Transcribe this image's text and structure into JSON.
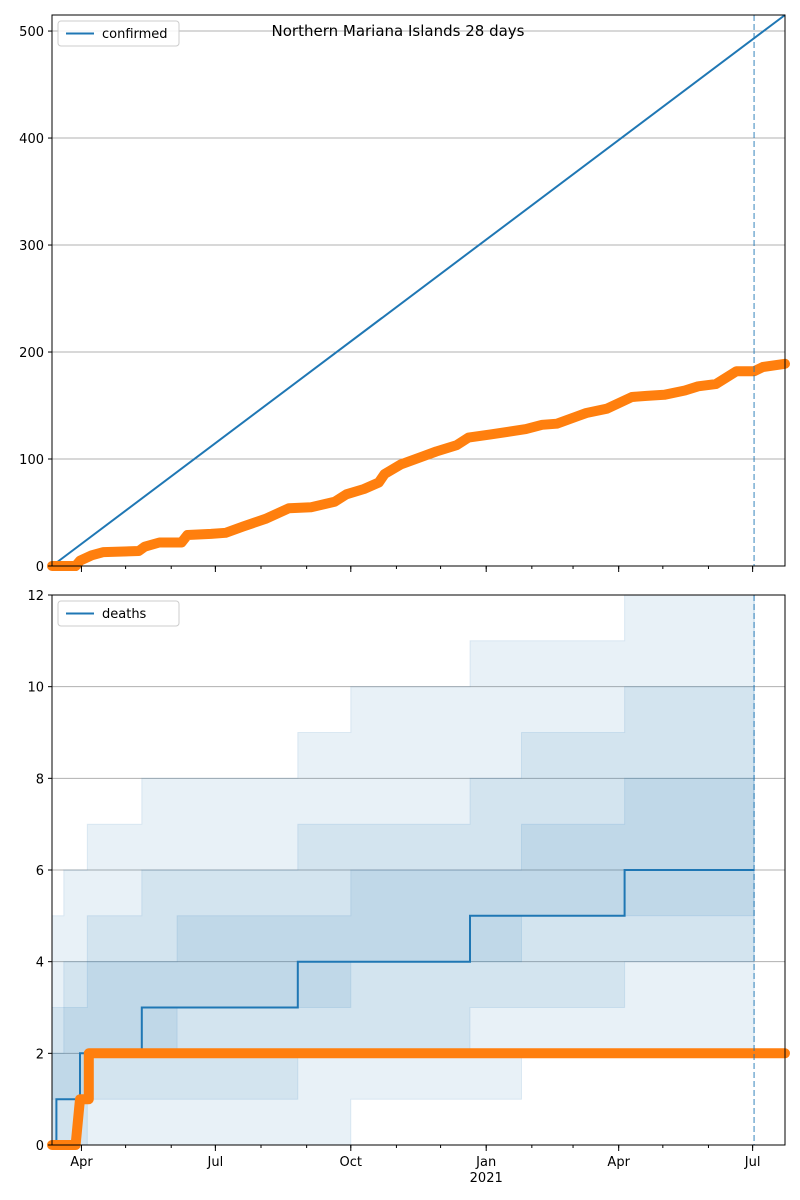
{
  "colors": {
    "line": "#1f77b4",
    "obs": "#ff7f0e",
    "band": "#1f77b4",
    "grid": "#b0b0b0",
    "vline": "#1f77b4"
  },
  "chart_data": [
    {
      "type": "line",
      "title": "Northern Mariana Islands 28 days",
      "legend": "top-left",
      "grid": "horizontal",
      "ylim": [
        0,
        515
      ],
      "yticks": [
        "0",
        "100",
        "200",
        "300",
        "400",
        "500"
      ],
      "xlim": [
        "2020-03-12",
        "2021-07-23"
      ],
      "vline": "2021-07-02",
      "series": [
        {
          "name": "confirmed",
          "kind": "line",
          "x": [
            "2020-03-12",
            "2021-07-23"
          ],
          "y": [
            0,
            515
          ]
        },
        {
          "name": "",
          "kind": "observed",
          "x": [
            "2020-03-12",
            "2020-03-28",
            "2020-03-31",
            "2020-04-08",
            "2020-04-16",
            "2020-05-10",
            "2020-05-14",
            "2020-05-24",
            "2020-06-08",
            "2020-06-12",
            "2020-06-28",
            "2020-07-08",
            "2020-07-20",
            "2020-08-04",
            "2020-08-20",
            "2020-09-04",
            "2020-09-20",
            "2020-09-28",
            "2020-10-10",
            "2020-10-20",
            "2020-10-24",
            "2020-11-04",
            "2020-11-20",
            "2020-11-28",
            "2020-12-12",
            "2020-12-20",
            "2021-01-04",
            "2021-01-28",
            "2021-02-08",
            "2021-02-18",
            "2021-03-04",
            "2021-03-10",
            "2021-03-24",
            "2021-04-10",
            "2021-04-20",
            "2021-05-02",
            "2021-05-16",
            "2021-05-25",
            "2021-06-06",
            "2021-06-20",
            "2021-07-02",
            "2021-07-08",
            "2021-07-23"
          ],
          "y": [
            0,
            0,
            5,
            10,
            13,
            14,
            18,
            22,
            22,
            29,
            30,
            31,
            37,
            44,
            54,
            55,
            60,
            67,
            72,
            78,
            86,
            95,
            103,
            107,
            113,
            120,
            123,
            128,
            132,
            133,
            140,
            143,
            147,
            158,
            159,
            160,
            164,
            168,
            170,
            182,
            182,
            186,
            189
          ]
        }
      ]
    },
    {
      "type": "line",
      "title": "",
      "legend": "top-left",
      "grid": "horizontal",
      "ylim": [
        0,
        12
      ],
      "yticks": [
        "0",
        "2",
        "4",
        "6",
        "8",
        "10",
        "12"
      ],
      "xlim": [
        "2020-03-12",
        "2021-07-23"
      ],
      "xticks": [
        {
          "date": "2020-04-01",
          "label": "Apr"
        },
        {
          "date": "2020-07-01",
          "label": "Jul"
        },
        {
          "date": "2020-10-01",
          "label": "Oct"
        },
        {
          "date": "2021-01-01",
          "label": "Jan"
        },
        {
          "date": "2021-04-01",
          "label": "Apr"
        },
        {
          "date": "2021-07-01",
          "label": "Jul"
        }
      ],
      "xyear": "2021",
      "vline": "2021-07-02",
      "series": [
        {
          "name": "deaths",
          "kind": "step",
          "x": [
            "2020-03-12",
            "2020-03-15",
            "2020-03-31",
            "2020-05-12",
            "2020-08-26",
            "2020-12-21",
            "2021-04-05",
            "2021-07-02"
          ],
          "y": [
            0,
            1,
            2,
            3,
            4,
            5,
            6,
            6
          ]
        },
        {
          "name": "",
          "kind": "observed",
          "x": [
            "2020-03-12",
            "2020-03-28",
            "2020-03-31",
            "2020-04-05",
            "2020-04-06",
            "2021-07-23"
          ],
          "y": [
            0,
            0,
            1,
            1,
            2,
            2
          ]
        }
      ],
      "bands": [
        {
          "x": [
            "2020-03-12",
            "2020-03-20",
            "2020-04-05",
            "2020-05-12",
            "2020-06-05",
            "2020-08-26",
            "2020-10-01",
            "2020-12-21",
            "2021-01-25",
            "2021-04-05",
            "2021-07-02"
          ],
          "lower": [
            1,
            1,
            2,
            2,
            3,
            3,
            4,
            4,
            5,
            5,
            6
          ],
          "upper": [
            2,
            3,
            4,
            4,
            5,
            5,
            6,
            6,
            7,
            8,
            9
          ]
        },
        {
          "x": [
            "2020-03-12",
            "2020-03-20",
            "2020-04-05",
            "2020-05-12",
            "2020-06-05",
            "2020-08-26",
            "2020-10-01",
            "2020-12-21",
            "2021-01-25",
            "2021-04-05",
            "2021-07-02"
          ],
          "lower": [
            0,
            0,
            1,
            1,
            1,
            2,
            2,
            3,
            3,
            4,
            4
          ],
          "upper": [
            3,
            4,
            5,
            6,
            6,
            7,
            7,
            8,
            9,
            10,
            12
          ]
        },
        {
          "x": [
            "2020-03-12",
            "2020-03-20",
            "2020-04-05",
            "2020-05-12",
            "2020-06-05",
            "2020-08-26",
            "2020-10-01",
            "2020-12-21",
            "2021-01-25",
            "2021-04-05",
            "2021-07-02"
          ],
          "lower": [
            0,
            0,
            0,
            0,
            0,
            0,
            1,
            1,
            2,
            2,
            2
          ],
          "upper": [
            5,
            6,
            7,
            8,
            8,
            9,
            10,
            11,
            11,
            12,
            12
          ]
        }
      ]
    }
  ]
}
